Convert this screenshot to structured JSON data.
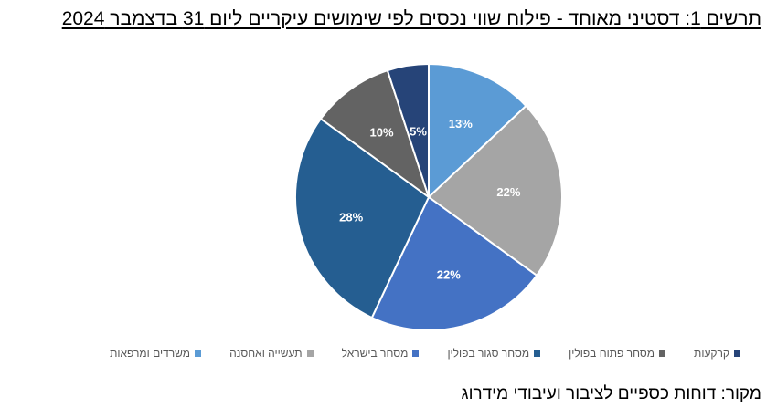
{
  "chart_data": {
    "type": "pie",
    "title": "תרשים 1: דסטיני מאוחד - פילוח שווי נכסים לפי שימושים עיקריים ליום 31 בדצמבר 2024",
    "legend_position": "bottom",
    "start_angle_deg": 0,
    "direction": "clockwise",
    "slices": [
      {
        "name": "משרדים ומרפאות",
        "value": 13,
        "label": "13%",
        "color": "#5B9BD5"
      },
      {
        "name": "תעשייה ואחסנה",
        "value": 22,
        "label": "22%",
        "color": "#A5A5A5"
      },
      {
        "name": "מסחר בישראל",
        "value": 22,
        "label": "22%",
        "color": "#4472C4"
      },
      {
        "name": "מסחר סגור בפולין",
        "value": 28,
        "label": "28%",
        "color": "#255E91"
      },
      {
        "name": "מסחר פתוח בפולין",
        "value": 10,
        "label": "10%",
        "color": "#636363"
      },
      {
        "name": "קרקעות",
        "value": 5,
        "label": "5%",
        "color": "#264478"
      }
    ]
  },
  "source": "מקור: דוחות כספיים לציבור ועיבודי מידרוג"
}
